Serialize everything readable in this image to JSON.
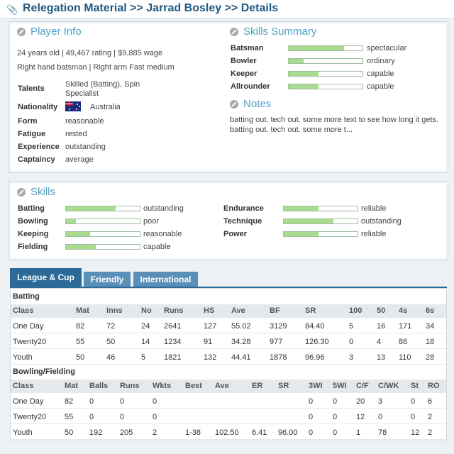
{
  "breadcrumb": "Relegation Material >> Jarrad Bosley >> Details",
  "player_info": {
    "title": "Player Info",
    "line1": "24 years old  |  49,467 rating  |  $9,885 wage",
    "line2": "Right hand batsman  |  Right arm Fast medium",
    "rows": [
      {
        "label": "Talents",
        "value": "Skilled (Batting), Spin",
        "value2": "Specialist"
      },
      {
        "label": "Nationality",
        "value": "Australia"
      },
      {
        "label": "Form",
        "value": "reasonable"
      },
      {
        "label": "Fatigue",
        "value": "rested"
      },
      {
        "label": "Experience",
        "value": "outstanding"
      },
      {
        "label": "Captaincy",
        "value": "average"
      }
    ]
  },
  "skills_summary": {
    "title": "Skills Summary",
    "items": [
      {
        "label": "Batsman",
        "value": "spectacular",
        "level": 0.75
      },
      {
        "label": "Bowler",
        "value": "ordinary",
        "level": 0.2
      },
      {
        "label": "Keeper",
        "value": "capable",
        "level": 0.4
      },
      {
        "label": "Allrounder",
        "value": "capable",
        "level": 0.4
      }
    ]
  },
  "notes": {
    "title": "Notes",
    "line1": "batting out. tech out. some more text to see how long it gets.",
    "line2": "batting out. tech out. some more t..."
  },
  "skills": {
    "title": "Skills",
    "left": [
      {
        "label": "Batting",
        "value": "outstanding",
        "level": 0.67
      },
      {
        "label": "Bowling",
        "value": "poor",
        "level": 0.13
      },
      {
        "label": "Keeping",
        "value": "reasonable",
        "level": 0.33
      },
      {
        "label": "Fielding",
        "value": "capable",
        "level": 0.4
      }
    ],
    "right": [
      {
        "label": "Endurance",
        "value": "reliable",
        "level": 0.47
      },
      {
        "label": "Technique",
        "value": "outstanding",
        "level": 0.67
      },
      {
        "label": "Power",
        "value": "reliable",
        "level": 0.47
      }
    ]
  },
  "tabs": [
    "League & Cup",
    "Friendly",
    "International"
  ],
  "batting": {
    "title": "Batting",
    "headers": [
      "Class",
      "Mat",
      "Inns",
      "No",
      "Runs",
      "HS",
      "Ave",
      "BF",
      "SR",
      "100",
      "50",
      "4s",
      "6s"
    ],
    "rows": [
      [
        "One Day",
        "82",
        "72",
        "24",
        "2641",
        "127",
        "55.02",
        "3129",
        "84.40",
        "5",
        "16",
        "171",
        "34"
      ],
      [
        "Twenty20",
        "55",
        "50",
        "14",
        "1234",
        "91",
        "34.28",
        "977",
        "126.30",
        "0",
        "4",
        "86",
        "18"
      ],
      [
        "Youth",
        "50",
        "46",
        "5",
        "1821",
        "132",
        "44.41",
        "1878",
        "96.96",
        "3",
        "13",
        "110",
        "28"
      ]
    ]
  },
  "bowling": {
    "title": "Bowling/Fielding",
    "headers": [
      "Class",
      "Mat",
      "Balls",
      "Runs",
      "Wkts",
      "Best",
      "Ave",
      "ER",
      "SR",
      "3WI",
      "5WI",
      "C/F",
      "C/WK",
      "St",
      "RO"
    ],
    "rows": [
      [
        "One Day",
        "82",
        "0",
        "0",
        "0",
        "",
        "",
        "",
        "",
        "0",
        "0",
        "20",
        "3",
        "0",
        "6"
      ],
      [
        "Twenty20",
        "55",
        "0",
        "0",
        "0",
        "",
        "",
        "",
        "",
        "0",
        "0",
        "12",
        "0",
        "0",
        "2"
      ],
      [
        "Youth",
        "50",
        "192",
        "205",
        "2",
        "1-38",
        "102.50",
        "6.41",
        "96.00",
        "0",
        "0",
        "1",
        "78",
        "12",
        "2"
      ]
    ]
  },
  "colors": {
    "accent": "#4fa1c5",
    "tab_active": "#2c6a98",
    "tab_inactive": "#5a8fb8",
    "bar_fill": "#a9dc8f"
  },
  "icons": [
    "paperclip-icon",
    "pencil-icon",
    "flag-australia-icon"
  ]
}
